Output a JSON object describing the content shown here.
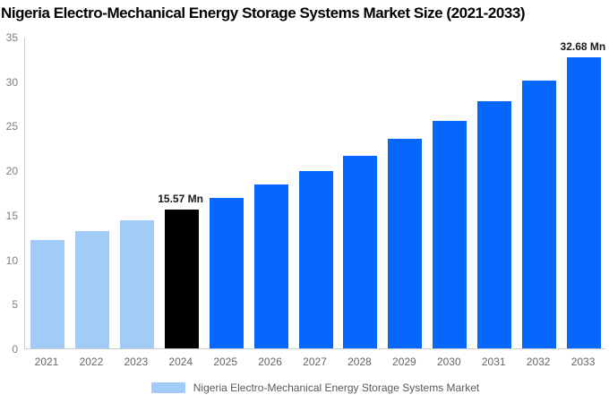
{
  "title": "Nigeria Electro-Mechanical Energy Storage Systems Market Size (2021-2033)",
  "chart_data": {
    "type": "bar",
    "title": "Nigeria Electro-Mechanical Energy Storage Systems Market Size (2021-2033)",
    "categories": [
      "2021",
      "2022",
      "2023",
      "2024",
      "2025",
      "2026",
      "2027",
      "2028",
      "2029",
      "2030",
      "2031",
      "2032",
      "2033"
    ],
    "values": [
      12.16,
      13.2,
      14.34,
      15.57,
      16.91,
      18.36,
      19.94,
      21.65,
      23.51,
      25.53,
      27.72,
      30.1,
      32.68
    ],
    "unit": "Mn",
    "xlabel": "",
    "ylabel": "",
    "ylim": [
      0,
      35
    ],
    "yticks": [
      0,
      5,
      10,
      15,
      20,
      25,
      30,
      35
    ],
    "grid": false,
    "legend_position": "bottom",
    "bar_colors": [
      "#A2CBF7",
      "#A2CBF7",
      "#A2CBF7",
      "#000000",
      "#0567FB",
      "#0567FB",
      "#0567FB",
      "#0567FB",
      "#0567FB",
      "#0567FB",
      "#0567FB",
      "#0567FB",
      "#0567FB"
    ],
    "color_meaning": {
      "historical": "#A2CBF7",
      "base_year": "#000000",
      "forecast": "#0567FB"
    },
    "annotations": [
      {
        "category": "2024",
        "label": "15.57 Mn"
      },
      {
        "category": "2033",
        "label": "32.68 Mn"
      }
    ],
    "legend": {
      "label": "Nigeria Electro-Mechanical Energy Storage Systems Market",
      "swatch_color": "#A2CBF7"
    },
    "axis_color": "#CCCCCC"
  }
}
